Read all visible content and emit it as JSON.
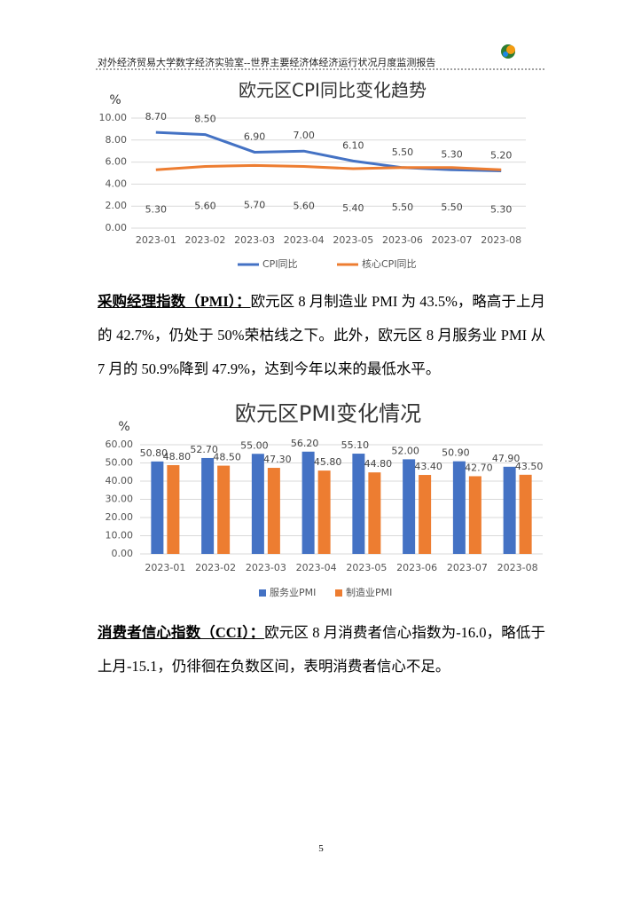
{
  "header": {
    "title": "对外经济贸易大学数字经济实验室--世界主要经济体经济运行状况月度监测报告"
  },
  "chart_data": [
    {
      "type": "line",
      "title": "欧元区CPI同比变化趋势",
      "y_label": "%",
      "categories": [
        "2023-01",
        "2023-02",
        "2023-03",
        "2023-04",
        "2023-05",
        "2023-06",
        "2023-07",
        "2023-08"
      ],
      "series": [
        {
          "name": "CPI同比",
          "color": "#4472c4",
          "values": [
            8.7,
            8.5,
            6.9,
            7.0,
            6.1,
            5.5,
            5.3,
            5.2
          ],
          "value_labels": [
            "8.70",
            "8.50",
            "6.90",
            "7.00",
            "6.10",
            "5.50",
            "5.30",
            "5.20"
          ]
        },
        {
          "name": "核心CPI同比",
          "color": "#ed7d31",
          "values": [
            5.3,
            5.6,
            5.7,
            5.6,
            5.4,
            5.5,
            5.5,
            5.3
          ],
          "value_labels": [
            "5.30",
            "5.60",
            "5.70",
            "5.60",
            "5.40",
            "5.50",
            "5.50",
            "5.30"
          ]
        }
      ],
      "ylim": [
        0,
        10
      ],
      "yticks": [
        {
          "value": 0,
          "label": "0.00"
        },
        {
          "value": 2,
          "label": "2.00"
        },
        {
          "value": 4,
          "label": "4.00"
        },
        {
          "value": 6,
          "label": "6.00"
        },
        {
          "value": 8,
          "label": "8.00"
        },
        {
          "value": 10,
          "label": "10.00"
        }
      ],
      "grid": true,
      "legend": "bottom"
    },
    {
      "type": "bar",
      "title": "欧元区PMI变化情况",
      "y_label": "%",
      "categories": [
        "2023-01",
        "2023-02",
        "2023-03",
        "2023-04",
        "2023-05",
        "2023-06",
        "2023-07",
        "2023-08"
      ],
      "series": [
        {
          "name": "服务业PMI",
          "color": "#4472c4",
          "values": [
            50.8,
            52.7,
            55.0,
            56.2,
            55.1,
            52.0,
            50.9,
            47.9
          ],
          "value_labels": [
            "50.80",
            "52.70",
            "55.00",
            "56.20",
            "55.10",
            "52.00",
            "50.90",
            "47.90"
          ]
        },
        {
          "name": "制造业PMI",
          "color": "#ed7d31",
          "values": [
            48.8,
            48.5,
            47.3,
            45.8,
            44.8,
            43.4,
            42.7,
            43.5
          ],
          "value_labels": [
            "48.80",
            "48.50",
            "47.30",
            "45.80",
            "44.80",
            "43.40",
            "42.70",
            "43.50"
          ]
        }
      ],
      "ylim": [
        0,
        60
      ],
      "yticks": [
        {
          "value": 0,
          "label": "0.00"
        },
        {
          "value": 10,
          "label": "10.00"
        },
        {
          "value": 20,
          "label": "20.00"
        },
        {
          "value": 30,
          "label": "30.00"
        },
        {
          "value": 40,
          "label": "40.00"
        },
        {
          "value": 50,
          "label": "50.00"
        },
        {
          "value": 60,
          "label": "60.00"
        }
      ],
      "grid": true,
      "legend": "bottom"
    }
  ],
  "paragraphs": [
    {
      "lead": "采购经理指数（PMI）：",
      "text": "欧元区 8 月制造业 PMI 为 43.5%，略高于上月的 42.7%，仍处于 50%荣枯线之下。此外，欧元区 8 月服务业 PMI 从 7 月的 50.9%降到 47.9%，达到今年以来的最低水平。"
    },
    {
      "lead": "消费者信心指数（CCI）：",
      "text": "欧元区 8 月消费者信心指数为-16.0，略低于上月-15.1，仍徘徊在负数区间，表明消费者信心不足。"
    }
  ],
  "page_number": "5"
}
